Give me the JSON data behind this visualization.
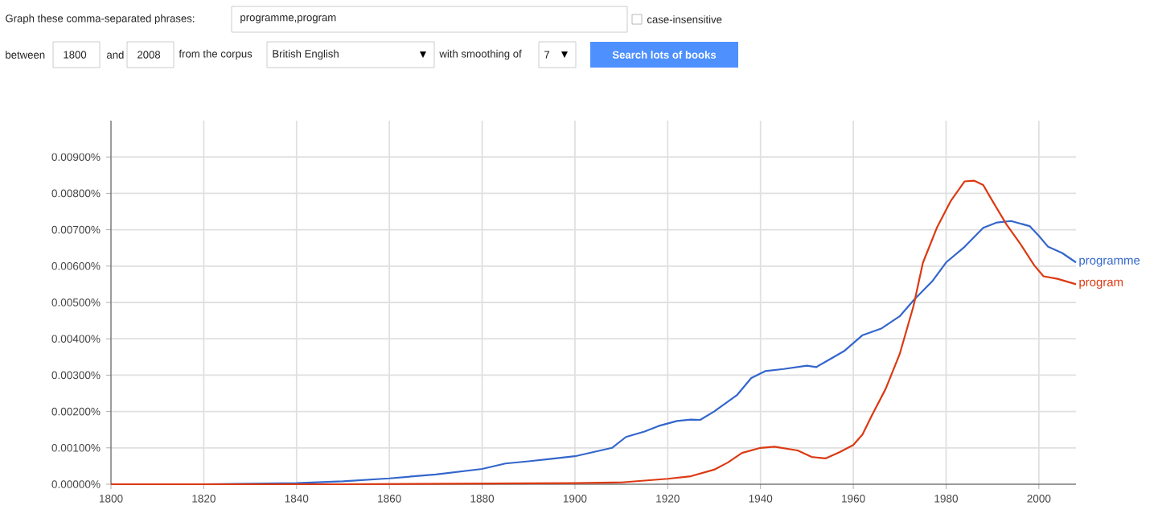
{
  "chart_data": {
    "type": "line",
    "annotations": [
      "Graph these comma-separated phrases:",
      "programme,program",
      "case-insensitive",
      "between",
      "1800",
      "and",
      "2008",
      "from the corpus",
      "British English",
      "with smoothing of",
      "7",
      "Search lots of books"
    ],
    "series": [
      {
        "name": "programme",
        "color": "#3366cc",
        "x": [
          1800,
          1820,
          1840,
          1850,
          1860,
          1870,
          1880,
          1885,
          1890,
          1895,
          1900,
          1908,
          1911,
          1915,
          1918,
          1922,
          1925,
          1927,
          1930,
          1935,
          1938,
          1941,
          1945,
          1950,
          1952,
          1955,
          1958,
          1962,
          1966,
          1970,
          1973,
          1977,
          1980,
          1984,
          1988,
          1991,
          1994,
          1998,
          2000,
          2002,
          2005,
          2008
        ],
        "values": [
          0,
          0,
          3e-05,
          8e-05,
          0.00016,
          0.00027,
          0.00042,
          0.00057,
          0.00063,
          0.0007,
          0.00077,
          0.001,
          0.0013,
          0.00145,
          0.0016,
          0.00174,
          0.00178,
          0.00177,
          0.002,
          0.00246,
          0.00292,
          0.00311,
          0.00317,
          0.00326,
          0.00322,
          0.00344,
          0.00366,
          0.0041,
          0.00428,
          0.00462,
          0.00506,
          0.00558,
          0.0061,
          0.00653,
          0.00705,
          0.0072,
          0.00724,
          0.0071,
          0.00683,
          0.00653,
          0.00636,
          0.0061
        ]
      },
      {
        "name": "program",
        "color": "#dc3912",
        "x": [
          1800,
          1850,
          1900,
          1910,
          1920,
          1925,
          1930,
          1933,
          1936,
          1940,
          1943,
          1948,
          1951,
          1954,
          1957,
          1960,
          1962,
          1964,
          1967,
          1970,
          1973,
          1975,
          1978,
          1981,
          1984,
          1986,
          1988,
          1990,
          1993,
          1996,
          1999,
          2001,
          2004,
          2008
        ],
        "values": [
          0,
          0,
          3e-05,
          5e-05,
          0.00015,
          0.00022,
          0.0004,
          0.0006,
          0.00086,
          0.001,
          0.00103,
          0.00093,
          0.00075,
          0.00071,
          0.00088,
          0.00108,
          0.00137,
          0.00189,
          0.00263,
          0.00358,
          0.00491,
          0.00609,
          0.00705,
          0.00779,
          0.00833,
          0.00835,
          0.00823,
          0.00779,
          0.00715,
          0.00661,
          0.00602,
          0.00572,
          0.00565,
          0.0055
        ]
      }
    ],
    "xlim": [
      1800,
      2008
    ],
    "ylim": [
      0,
      0.01
    ],
    "xticks": [
      1800,
      1820,
      1840,
      1860,
      1880,
      1900,
      1920,
      1940,
      1960,
      1980,
      2000
    ],
    "yticks": [
      {
        "value": 0,
        "label": "0.00000%"
      },
      {
        "value": 0.001,
        "label": "0.00100%"
      },
      {
        "value": 0.002,
        "label": "0.00200%"
      },
      {
        "value": 0.003,
        "label": "0.00300%"
      },
      {
        "value": 0.004,
        "label": "0.00400%"
      },
      {
        "value": 0.005,
        "label": "0.00500%"
      },
      {
        "value": 0.006,
        "label": "0.00600%"
      },
      {
        "value": 0.007,
        "label": "0.00700%"
      },
      {
        "value": 0.008,
        "label": "0.00800%"
      },
      {
        "value": 0.009,
        "label": "0.00900%"
      }
    ],
    "grid": true
  }
}
